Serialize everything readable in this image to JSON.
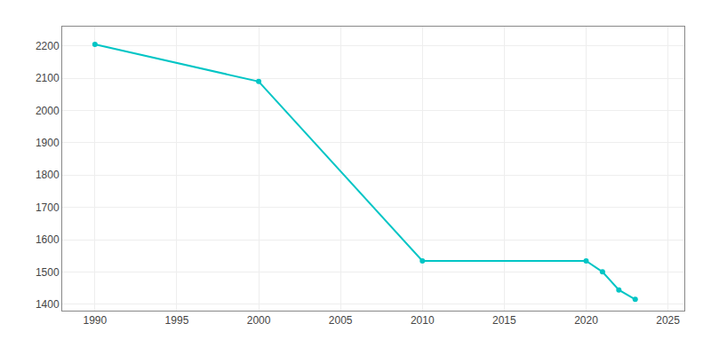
{
  "chart_data": {
    "type": "line",
    "x": [
      1990,
      2000,
      2010,
      2020,
      2021,
      2022,
      2023
    ],
    "values": [
      2205,
      2090,
      1534,
      1534,
      1500,
      1444,
      1415
    ],
    "color": "#00C5C5",
    "marker": "circle",
    "line_style": "solid",
    "xlim": [
      1988,
      2026
    ],
    "ylim": [
      1380,
      2260
    ],
    "xticks": [
      1990,
      1995,
      2000,
      2005,
      2010,
      2015,
      2020,
      2025
    ],
    "yticks": [
      1400,
      1500,
      1600,
      1700,
      1800,
      1900,
      2000,
      2100,
      2200
    ],
    "grid": true
  }
}
